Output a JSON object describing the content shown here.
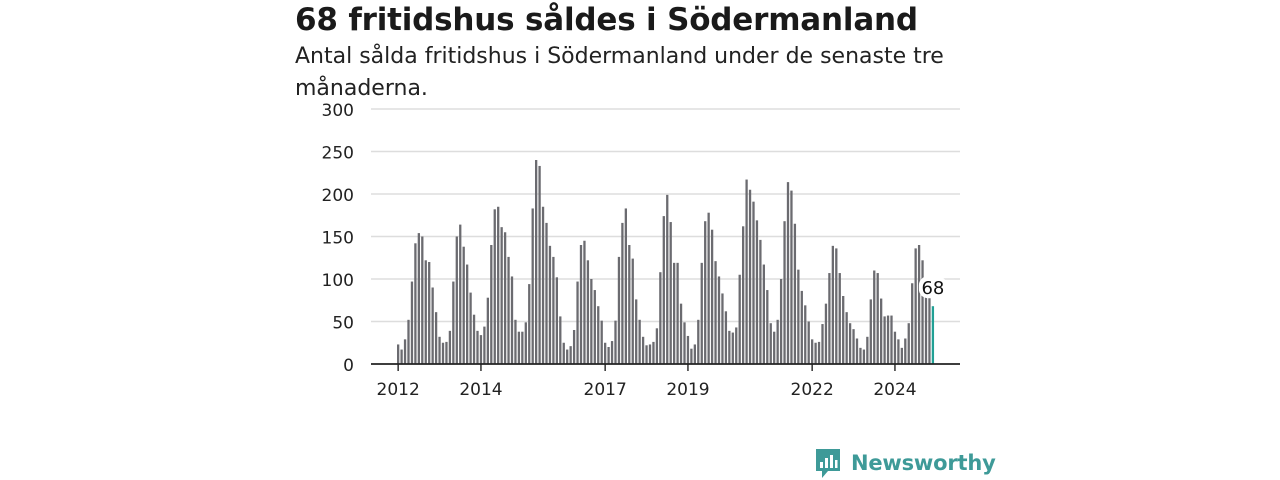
{
  "title": "68 fritidshus såldes i Södermanland",
  "subtitle": "Antal sålda fritidshus i Södermanland under de senaste tre månaderna.",
  "brand": {
    "name": "Newsworthy"
  },
  "colors": {
    "bar": "#6b6b70",
    "highlight": "#21a095",
    "grid": "#dddddd",
    "axis": "#222222"
  },
  "chart_data": {
    "type": "bar",
    "title": "68 fritidshus såldes i Södermanland",
    "subtitle": "Antal sålda fritidshus i Södermanland under de senaste tre månaderna.",
    "xlabel": "",
    "ylabel": "",
    "ylim": [
      0,
      300
    ],
    "yticks": [
      0,
      50,
      100,
      150,
      200,
      250,
      300
    ],
    "xticks": [
      "2012",
      "2014",
      "2017",
      "2019",
      "2022",
      "2024"
    ],
    "grid": true,
    "start_period": "2012-01",
    "values": [
      23,
      17,
      29,
      52,
      97,
      142,
      154,
      150,
      122,
      120,
      90,
      61,
      32,
      25,
      26,
      39,
      97,
      150,
      164,
      138,
      117,
      84,
      58,
      39,
      34,
      44,
      78,
      140,
      182,
      185,
      161,
      155,
      126,
      103,
      52,
      38,
      38,
      49,
      94,
      183,
      240,
      233,
      185,
      166,
      139,
      126,
      102,
      56,
      25,
      17,
      21,
      40,
      97,
      140,
      145,
      122,
      100,
      87,
      68,
      51,
      25,
      20,
      27,
      51,
      126,
      166,
      183,
      140,
      124,
      76,
      52,
      32,
      22,
      23,
      26,
      42,
      108,
      174,
      199,
      167,
      119,
      119,
      71,
      49,
      33,
      18,
      23,
      52,
      119,
      168,
      178,
      158,
      121,
      103,
      83,
      62,
      39,
      37,
      43,
      105,
      162,
      217,
      205,
      191,
      169,
      146,
      117,
      87,
      48,
      38,
      52,
      100,
      168,
      214,
      204,
      165,
      111,
      86,
      69,
      50,
      29,
      25,
      26,
      47,
      71,
      107,
      139,
      136,
      107,
      80,
      61,
      48,
      41,
      30,
      19,
      17,
      32,
      76,
      110,
      107,
      77,
      56,
      57,
      57,
      38,
      29,
      19,
      30,
      48,
      95,
      136,
      140,
      122,
      94,
      79,
      68
    ],
    "annotations": [
      {
        "label": "68"
      }
    ]
  }
}
